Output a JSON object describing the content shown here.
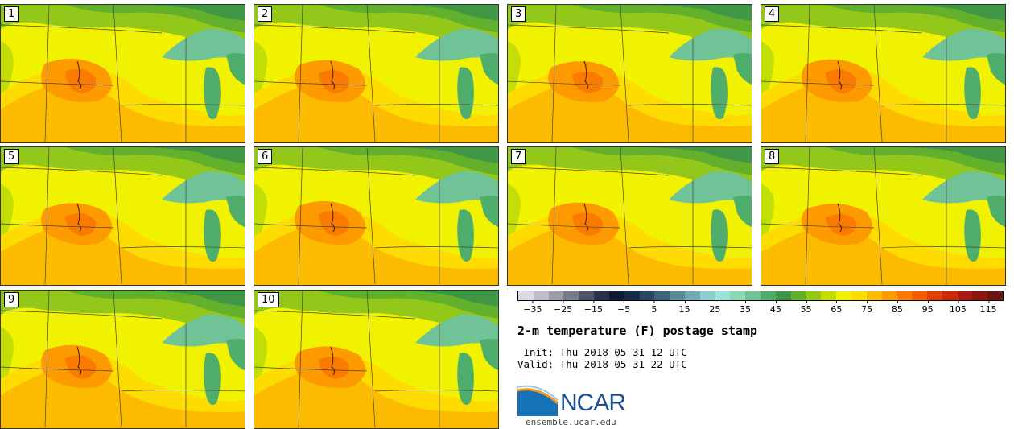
{
  "title": "2-m temperature (F) postage stamp",
  "init": " Init: Thu 2018-05-31 12 UTC",
  "valid": "Valid: Thu 2018-05-31 22 UTC",
  "logo": {
    "name": "NCAR",
    "url": "ensemble.ucar.edu"
  },
  "members": [
    "1",
    "2",
    "3",
    "4",
    "5",
    "6",
    "7",
    "8",
    "9",
    "10"
  ],
  "colorbar": {
    "ticks": [
      "−35",
      "−25",
      "−15",
      "−5",
      "5",
      "15",
      "25",
      "35",
      "45",
      "55",
      "65",
      "75",
      "85",
      "95",
      "105",
      "115"
    ],
    "range": [
      -40,
      120
    ],
    "step": 5,
    "colors": [
      "#dcdce6",
      "#bcbfca",
      "#9a9eab",
      "#767c8c",
      "#4b5466",
      "#28334b",
      "#101a35",
      "#162a4a",
      "#294662",
      "#3e6279",
      "#5a8a98",
      "#74a9b3",
      "#8ccccc",
      "#9ee3da",
      "#8fd6b6",
      "#6fc396",
      "#4fae6b",
      "#3f9645",
      "#63b02c",
      "#93c81a",
      "#c3de07",
      "#f1f200",
      "#fedc00",
      "#fdbb00",
      "#fd9a00",
      "#fb7a00",
      "#f15d00",
      "#df3f05",
      "#c72a0b",
      "#a91c0f",
      "#8b170f",
      "#6b1410"
    ]
  },
  "map_colors": {
    "north": "#3f9645",
    "north_light": "#63b02c",
    "lake": "#6fc396",
    "lake_dark": "#4fae6b",
    "mid_green": "#93c81a",
    "yellow_green": "#c3de07",
    "yellow": "#f1f200",
    "gold": "#fedc00",
    "amber": "#fdbb00",
    "orange": "#fd9a00",
    "deep_orange": "#fb7a00"
  }
}
